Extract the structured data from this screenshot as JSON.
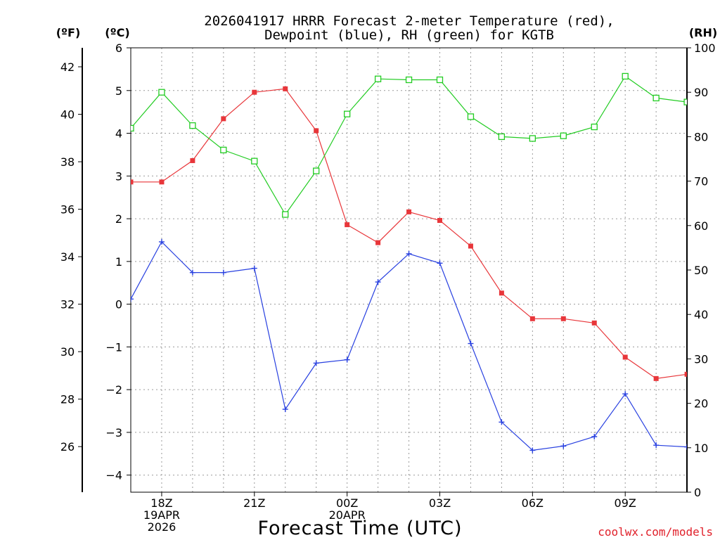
{
  "chart_data": {
    "type": "line",
    "title_line1": "2026041917 HRRR Forecast 2-meter Temperature (red),",
    "title_line2": "Dewpoint (blue), RH (green) for KGTB",
    "xlabel": "Forecast Time (UTC)",
    "credit": "coolwx.com/models",
    "left_unit_f": "(ºF)",
    "left_unit_c": "(ºC)",
    "right_unit": "(RH)",
    "c_range": [
      -4.4,
      6
    ],
    "f_range": [
      24.08,
      42.8
    ],
    "rh_range": [
      0,
      100
    ],
    "c_ticks": [
      "6",
      "5",
      "4",
      "3",
      "2",
      "1",
      "0",
      "−1",
      "−2",
      "−3",
      "−4"
    ],
    "f_ticks": [
      "42",
      "40",
      "38",
      "36",
      "34",
      "32",
      "30",
      "28",
      "26"
    ],
    "rh_ticks": [
      "100",
      "90",
      "80",
      "70",
      "60",
      "50",
      "40",
      "30",
      "20",
      "10",
      "0"
    ],
    "x_hours": [
      0,
      1,
      2,
      3,
      4,
      5,
      6,
      7,
      8,
      9,
      10,
      11,
      12,
      13,
      14,
      15,
      16,
      17,
      18
    ],
    "x_ticks": [
      {
        "hour": 1,
        "lines": [
          "18Z",
          "19APR",
          "2026"
        ]
      },
      {
        "hour": 4,
        "lines": [
          "21Z"
        ]
      },
      {
        "hour": 7,
        "lines": [
          "00Z",
          "20APR"
        ]
      },
      {
        "hour": 10,
        "lines": [
          "03Z"
        ]
      },
      {
        "hour": 13,
        "lines": [
          "06Z"
        ]
      },
      {
        "hour": 16,
        "lines": [
          "09Z"
        ]
      }
    ],
    "series": [
      {
        "name": "Temperature",
        "unit": "C",
        "color": "#e8363a",
        "marker": "filled-square",
        "values": [
          2.86,
          2.86,
          3.36,
          4.34,
          4.96,
          5.04,
          4.06,
          1.86,
          1.44,
          2.16,
          1.96,
          1.36,
          0.26,
          -0.34,
          -0.34,
          -0.44,
          -1.24,
          -1.74,
          -1.64
        ]
      },
      {
        "name": "Dewpoint",
        "unit": "C",
        "color": "#2840e0",
        "marker": "plus",
        "values": [
          0.12,
          1.46,
          0.74,
          0.74,
          0.84,
          -2.46,
          -1.38,
          -1.3,
          0.52,
          1.18,
          0.96,
          -0.92,
          -2.76,
          -3.42,
          -3.32,
          -3.1,
          -2.1,
          -3.3,
          -3.34
        ]
      },
      {
        "name": "RH",
        "unit": "%",
        "color": "#22cc22",
        "marker": "open-square",
        "values": [
          81.9,
          90.0,
          82.5,
          77.0,
          74.5,
          62.5,
          72.3,
          85.1,
          93.0,
          92.8,
          92.8,
          84.5,
          80.0,
          79.6,
          80.2,
          82.2,
          93.6,
          88.7,
          87.8
        ]
      }
    ]
  }
}
